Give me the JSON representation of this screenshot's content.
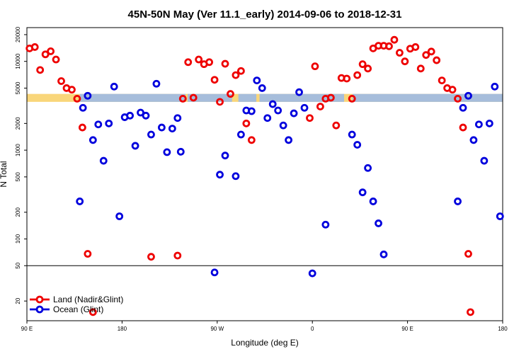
{
  "chart_data": {
    "type": "scatter",
    "title": "45N-50N May (Ver 11.1_early)   2014-09-06 to 2018-12-31",
    "xlabel": "Longitude (deg E)",
    "ylabel": "N Total",
    "y_scale": "log",
    "xlim": [
      90,
      540
    ],
    "ylim": [
      12,
      24000
    ],
    "x_ticks": [
      {
        "value": 90,
        "label": "90 E"
      },
      {
        "value": 180,
        "label": "180"
      },
      {
        "value": 270,
        "label": "90 W"
      },
      {
        "value": 360,
        "label": "0"
      },
      {
        "value": 450,
        "label": "90 E"
      },
      {
        "value": 540,
        "label": "180"
      }
    ],
    "y_ticks": [
      {
        "value": 20,
        "label": "20"
      },
      {
        "value": 50,
        "label": "50"
      },
      {
        "value": 100,
        "label": "100"
      },
      {
        "value": 200,
        "label": "200"
      },
      {
        "value": 500,
        "label": "500"
      },
      {
        "value": 1000,
        "label": "1000"
      },
      {
        "value": 2000,
        "label": "2000"
      },
      {
        "value": 5000,
        "label": "5000"
      },
      {
        "value": 10000,
        "label": "10000"
      },
      {
        "value": 20000,
        "label": "20000"
      }
    ],
    "reference_line": 50,
    "background_band": {
      "ymin": 3500,
      "ymax": 4300,
      "land_color": "#f9d67a",
      "ocean_color": "#a6bddb"
    },
    "legend_position": "bottom-left",
    "series": [
      {
        "name": "Land (Nadir&Glint)",
        "color": "#ee0000",
        "points": [
          [
            92.5,
            14000
          ],
          [
            97.5,
            14500
          ],
          [
            102.5,
            8000
          ],
          [
            107.5,
            12000
          ],
          [
            112.5,
            13000
          ],
          [
            117.5,
            10500
          ],
          [
            122.5,
            6000
          ],
          [
            127.5,
            5000
          ],
          [
            132.5,
            4800
          ],
          [
            137.5,
            3800
          ],
          [
            142.5,
            1800
          ],
          [
            147.5,
            68
          ],
          [
            152.5,
            15
          ],
          [
            207.5,
            63
          ],
          [
            232.5,
            65
          ],
          [
            237.5,
            3800
          ],
          [
            242.5,
            9800
          ],
          [
            247.5,
            3900
          ],
          [
            252.5,
            10500
          ],
          [
            257.5,
            9300
          ],
          [
            262.5,
            9800
          ],
          [
            267.5,
            6200
          ],
          [
            272.5,
            3500
          ],
          [
            277.5,
            9400
          ],
          [
            282.5,
            4300
          ],
          [
            287.5,
            7000
          ],
          [
            292.5,
            7800
          ],
          [
            297.5,
            2000
          ],
          [
            302.5,
            1300
          ],
          [
            357.5,
            2300
          ],
          [
            362.5,
            8800
          ],
          [
            367.5,
            3100
          ],
          [
            372.5,
            3800
          ],
          [
            377.5,
            3900
          ],
          [
            382.5,
            1900
          ],
          [
            387.5,
            6500
          ],
          [
            392.5,
            6400
          ],
          [
            397.5,
            3800
          ],
          [
            402.5,
            7000
          ],
          [
            407.5,
            9300
          ],
          [
            412.5,
            8300
          ],
          [
            417.5,
            14000
          ],
          [
            422.5,
            15000
          ],
          [
            427.5,
            15000
          ],
          [
            432.5,
            14800
          ],
          [
            437.5,
            17500
          ],
          [
            442.5,
            12500
          ],
          [
            447.5,
            10000
          ],
          [
            452.5,
            13900
          ],
          [
            457.5,
            14500
          ],
          [
            462.5,
            8300
          ],
          [
            467.5,
            11800
          ],
          [
            472.5,
            12900
          ],
          [
            477.5,
            10300
          ],
          [
            482.5,
            6100
          ],
          [
            487.5,
            5000
          ],
          [
            492.5,
            4800
          ],
          [
            497.5,
            3800
          ],
          [
            502.5,
            1800
          ],
          [
            507.5,
            68
          ],
          [
            509.5,
            15
          ]
        ]
      },
      {
        "name": "Ocean (Glint)",
        "color": "#0000dd",
        "points": [
          [
            140,
            265
          ],
          [
            143,
            3000
          ],
          [
            147.5,
            4100
          ],
          [
            152.5,
            1300
          ],
          [
            157.5,
            1950
          ],
          [
            162.5,
            760
          ],
          [
            167.5,
            2000
          ],
          [
            172.5,
            5200
          ],
          [
            177.5,
            180
          ],
          [
            182.5,
            2350
          ],
          [
            187.5,
            2450
          ],
          [
            192.5,
            1120
          ],
          [
            197.5,
            2650
          ],
          [
            202.5,
            2450
          ],
          [
            207.5,
            1500
          ],
          [
            212.5,
            5600
          ],
          [
            217.5,
            1800
          ],
          [
            222.5,
            950
          ],
          [
            227.5,
            1750
          ],
          [
            232.5,
            2300
          ],
          [
            235.5,
            960
          ],
          [
            267.5,
            42
          ],
          [
            272.5,
            530
          ],
          [
            277.5,
            870
          ],
          [
            287.5,
            510
          ],
          [
            292.5,
            1500
          ],
          [
            297.5,
            2800
          ],
          [
            302.5,
            2750
          ],
          [
            307.5,
            6100
          ],
          [
            312.5,
            5000
          ],
          [
            317.5,
            2300
          ],
          [
            322.5,
            3300
          ],
          [
            327.5,
            2800
          ],
          [
            332.5,
            1900
          ],
          [
            337.5,
            1300
          ],
          [
            342.5,
            2600
          ],
          [
            347.5,
            4500
          ],
          [
            352.5,
            3000
          ],
          [
            360,
            41
          ],
          [
            372.5,
            145
          ],
          [
            397.5,
            1500
          ],
          [
            402.5,
            1150
          ],
          [
            407.5,
            335
          ],
          [
            412.5,
            630
          ],
          [
            417.5,
            265
          ],
          [
            422.5,
            150
          ],
          [
            427.5,
            67
          ],
          [
            497.5,
            265
          ],
          [
            502.5,
            3000
          ],
          [
            507.5,
            4100
          ],
          [
            512.5,
            1300
          ],
          [
            517.5,
            1950
          ],
          [
            522.5,
            760
          ],
          [
            527.5,
            2000
          ],
          [
            532.5,
            5200
          ],
          [
            537.5,
            180
          ]
        ]
      }
    ]
  }
}
